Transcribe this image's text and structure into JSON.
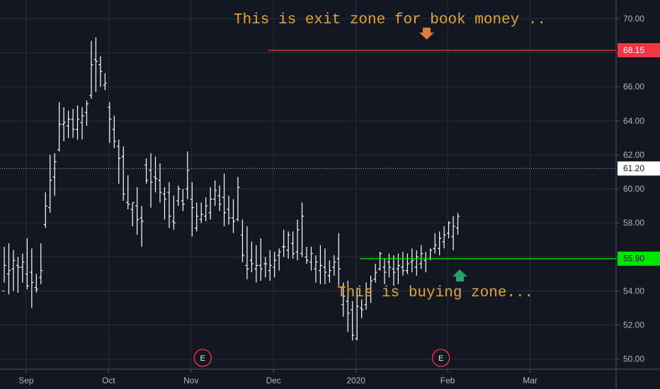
{
  "chart_data": {
    "type": "ohlc",
    "ylim": [
      49,
      70.9
    ],
    "yticks": [
      50,
      52,
      54,
      56,
      58,
      60,
      62,
      64,
      66,
      68,
      70
    ],
    "ytick_labels": [
      "50.00",
      "52.00",
      "54.00",
      "56.00",
      "58.00",
      "60.00",
      "62.00",
      "64.00",
      "66.00",
      "68.00",
      "70.00"
    ],
    "xticks": [
      {
        "label": "Sep",
        "bar": 4
      },
      {
        "label": "Oct",
        "bar": 22
      },
      {
        "label": "Nov",
        "bar": 40
      },
      {
        "label": "Dec",
        "bar": 58
      },
      {
        "label": "2020",
        "bar": 76
      },
      {
        "label": "Feb",
        "bar": 96
      },
      {
        "label": "Mar",
        "bar": 114
      }
    ],
    "bars": [
      [
        54,
        56.6,
        54.5,
        55.5
      ],
      [
        55,
        56.8,
        53.8,
        55.2
      ],
      [
        55.3,
        56.4,
        54,
        55.8
      ],
      [
        55.5,
        56,
        53.9,
        55.4
      ],
      [
        55.4,
        56.2,
        54.5,
        55.7
      ],
      [
        55,
        57.1,
        54.1,
        54.3
      ],
      [
        55.1,
        56.5,
        53,
        54.5
      ],
      [
        54.2,
        55,
        53.9,
        54.1
      ],
      [
        54.8,
        56.8,
        54.4,
        55.2
      ],
      [
        57.9,
        59.8,
        57.7,
        59
      ],
      [
        58.9,
        62,
        58.6,
        60.5
      ],
      [
        60.7,
        62.1,
        59.6,
        61.6
      ],
      [
        62.3,
        65.1,
        62.2,
        63.8
      ],
      [
        63.8,
        64.8,
        62.8,
        63.9
      ],
      [
        63.7,
        64.6,
        63,
        64.1
      ],
      [
        64.1,
        64.7,
        63,
        63.5
      ],
      [
        63.5,
        64.9,
        62.9,
        64.1
      ],
      [
        63.9,
        64.8,
        62.9,
        64.3
      ],
      [
        64.5,
        65.2,
        63.7,
        65
      ],
      [
        65.5,
        68.7,
        65.3,
        67.3
      ],
      [
        67.6,
        68.9,
        65.7,
        67.5
      ],
      [
        67.3,
        67.8,
        66,
        66.9
      ],
      [
        66.1,
        66.8,
        65.8,
        66.2
      ],
      [
        64.8,
        65.1,
        62.7,
        64.1
      ],
      [
        63.5,
        64.3,
        62.4,
        62.8
      ],
      [
        62.5,
        62.9,
        60.3,
        61.8
      ],
      [
        61.9,
        62.5,
        59.3,
        59.7
      ],
      [
        59.2,
        60.8,
        58.8,
        59.1
      ],
      [
        58.8,
        59.2,
        57.8,
        59.2
      ],
      [
        59,
        60.1,
        57.3,
        58.2
      ],
      [
        58.3,
        59,
        56.6,
        58.1
      ],
      [
        61.4,
        61.8,
        60.3,
        60.5
      ],
      [
        61.1,
        62.1,
        58.9,
        60.4
      ],
      [
        60.7,
        61.9,
        59.8,
        60.6
      ],
      [
        60.5,
        61.5,
        59.2,
        59.8
      ],
      [
        59.7,
        60.1,
        58.2,
        59.4
      ],
      [
        59.8,
        60.4,
        57.7,
        58.4
      ],
      [
        58.1,
        59.6,
        57.6,
        58
      ],
      [
        59.3,
        60.2,
        59,
        60
      ],
      [
        59.3,
        60,
        58.7,
        59.1
      ],
      [
        60,
        62.2,
        59.4,
        61.1
      ],
      [
        59.4,
        60.4,
        57.2,
        58.9
      ],
      [
        57.7,
        59.2,
        57.5,
        58.4
      ],
      [
        58.2,
        59.2,
        58,
        58.5
      ],
      [
        58.4,
        59.5,
        58.1,
        59
      ],
      [
        58.6,
        60.1,
        58.2,
        59.4
      ],
      [
        59.4,
        60.5,
        59,
        59.9
      ],
      [
        59.6,
        60.2,
        58.7,
        59.1
      ],
      [
        59.5,
        60.9,
        57.8,
        58.6
      ],
      [
        58.8,
        59.6,
        57.9,
        58.3
      ],
      [
        58.3,
        59.4,
        57.4,
        58.1
      ],
      [
        58.2,
        60.7,
        58.1,
        60.1
      ],
      [
        57.3,
        58.2,
        55.7,
        56.1
      ],
      [
        55.5,
        57.8,
        54.7,
        55.3
      ],
      [
        55.8,
        56.9,
        55.1,
        55.6
      ],
      [
        55.3,
        56.7,
        54.5,
        55.5
      ],
      [
        55.5,
        57.1,
        54.6,
        55.3
      ],
      [
        55.6,
        56,
        54.8,
        55.6
      ],
      [
        55.2,
        56.4,
        54.6,
        55.5
      ],
      [
        55.4,
        56.3,
        54.8,
        55.8
      ],
      [
        56.1,
        56.5,
        55.2,
        56.3
      ],
      [
        56.6,
        57.6,
        56,
        56.6
      ],
      [
        56.4,
        57.5,
        55.9,
        57.3
      ],
      [
        56.8,
        57.5,
        55.9,
        56.2
      ],
      [
        56.3,
        58.2,
        55.8,
        57.6
      ],
      [
        56.2,
        59.2,
        56,
        58.4
      ],
      [
        56,
        56.6,
        55.6,
        55.8
      ],
      [
        55.7,
        56.6,
        55.2,
        56.2
      ],
      [
        55.3,
        56.1,
        54.5,
        55.7
      ],
      [
        55.2,
        56.7,
        54.4,
        55.5
      ],
      [
        55.4,
        56.5,
        54.4,
        55.1
      ],
      [
        54.9,
        55.8,
        54.5,
        55.2
      ],
      [
        55.4,
        56.1,
        54.9,
        55.7
      ],
      [
        55.9,
        57.4,
        54.3,
        55.3
      ],
      [
        53.2,
        54.5,
        52.5,
        53.7
      ],
      [
        53.4,
        54.6,
        51.6,
        52.7
      ],
      [
        52.9,
        53.4,
        51.1,
        51.4
      ],
      [
        51.2,
        54.2,
        51.1,
        53.1
      ],
      [
        53,
        53.5,
        52.4,
        52.9
      ],
      [
        53.2,
        54.5,
        52.9,
        54.1
      ],
      [
        53.9,
        54.9,
        53.3,
        54.6
      ],
      [
        54.7,
        55.6,
        54.5,
        55.1
      ],
      [
        55.3,
        56.3,
        55.2,
        56.2
      ],
      [
        55.4,
        55.9,
        54.4,
        55.1
      ],
      [
        55.7,
        56.2,
        54.8,
        55.4
      ],
      [
        55.3,
        56.1,
        54.3,
        55.1
      ],
      [
        55.3,
        56.2,
        54.4,
        55.5
      ],
      [
        55.4,
        56.3,
        54.9,
        55.2
      ],
      [
        55.2,
        56.2,
        55,
        55.6
      ],
      [
        55.7,
        56.5,
        55.1,
        55.8
      ],
      [
        55.4,
        56.4,
        54.9,
        56
      ],
      [
        55.6,
        56.7,
        55.3,
        56.2
      ],
      [
        55.8,
        56.3,
        55.1,
        55.9
      ],
      [
        55.9,
        56.5,
        55.8,
        56.4
      ],
      [
        56.5,
        57.4,
        56.2,
        56.7
      ],
      [
        56.5,
        57.5,
        56.1,
        57.1
      ],
      [
        56.9,
        57.8,
        56.5,
        57.3
      ],
      [
        57.4,
        58.1,
        57.1,
        58
      ],
      [
        57.2,
        58.4,
        56.4,
        57.8
      ],
      [
        57.7,
        58.6,
        57.3,
        58.4
      ]
    ],
    "price_lines": [
      {
        "value": 68.15,
        "label": "68.15",
        "color": "#f23645",
        "start_bar": 57
      },
      {
        "value": 55.9,
        "label": "55.90",
        "color": "#00e600",
        "start_bar": 77
      },
      {
        "value": 61.2,
        "label": "61.20",
        "color": "#b2b5be",
        "dotted": true,
        "start_bar": 0
      }
    ],
    "annotations": {
      "exit_text": "This is exit zone for book money ..",
      "buy_text": "This is buying zone..."
    },
    "earnings_markers": [
      {
        "label": "E",
        "bar": 43
      },
      {
        "label": "E",
        "bar": 95
      }
    ],
    "colors": {
      "background": "#131722",
      "bars": "#ffffff",
      "grid": "#2a2e39",
      "annotation_text": "#e1a537",
      "exit_arrow": "#e07b39",
      "buy_arrow": "#26a269",
      "earnings": "#f23645"
    }
  }
}
